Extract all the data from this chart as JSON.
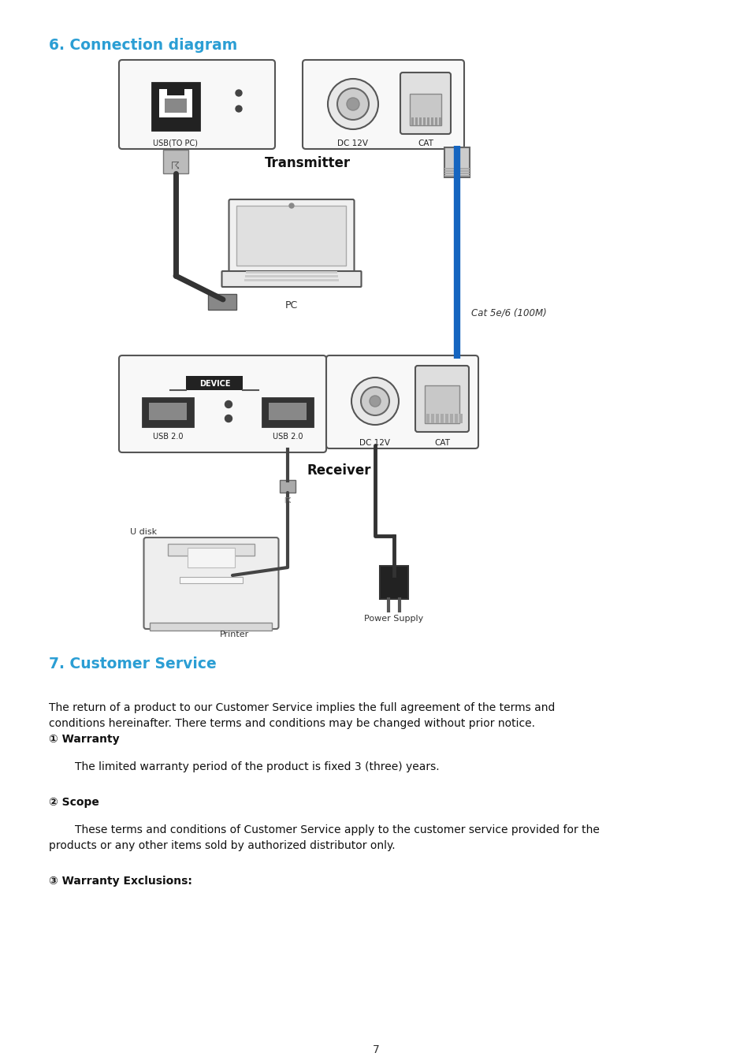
{
  "title": "6. Connection diagram",
  "title_color": "#2B9ED4",
  "title_fontsize": 13.5,
  "section2_title": "7. Customer Service",
  "section2_color": "#2B9ED4",
  "section2_fontsize": 13.5,
  "bg_color": "#ffffff",
  "text_color": "#111111",
  "para1_line1": "The return of a product to our Customer Service implies the full agreement of the terms and",
  "para1_line2": "conditions hereinafter. There terms and conditions may be changed without prior notice.",
  "w1_label": "① Warranty",
  "w1_text": "The limited warranty period of the product is fixed 3 (three) years.",
  "s2_label": "② Scope",
  "s2_text_line1": "These terms and conditions of Customer Service apply to the customer service provided for the",
  "s2_text_line2": "products or any other items sold by authorized distributor only.",
  "w3_label": "③ Warranty Exclusions:",
  "page_number": "7",
  "transmitter_label": "Transmitter",
  "receiver_label": "Receiver",
  "usb_to_pc_label": "USB(TO PC)",
  "dc12v_label_tx": "DC 12V",
  "cat_label_tx": "CAT",
  "device_label": "DEVICE",
  "usb20_left": "USB 2.0",
  "usb20_right": "USB 2.0",
  "dc12v_label_rx": "DC 12V",
  "cat_label_rx": "CAT",
  "pc_label": "PC",
  "cat5e_label": "Cat 5e/6 (100M)",
  "udisk_label": "U disk",
  "printer_label": "Printer",
  "power_supply_label": "Power Supply",
  "blue_cable_color": "#1565C0",
  "black_cable_color": "#333333",
  "connector_gray": "#aaaaaa",
  "box_edge": "#555555",
  "box_face": "#f5f5f5"
}
